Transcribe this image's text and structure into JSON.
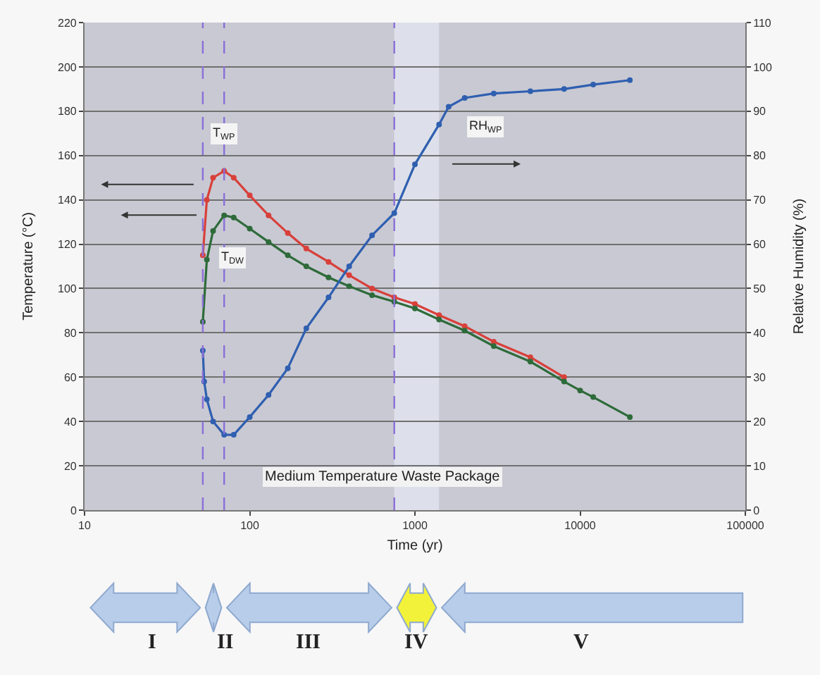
{
  "chart_data": {
    "type": "line",
    "xlabel": "Time (yr)",
    "ylabel": "Temperature (°C)",
    "y2label": "Relative Humidity (%)",
    "log": "x",
    "xlim": [
      10,
      100000
    ],
    "xticks": [
      10,
      100,
      1000,
      10000,
      100000
    ],
    "ylim": [
      0,
      220
    ],
    "yticks": [
      0,
      20,
      40,
      60,
      80,
      100,
      120,
      140,
      160,
      180,
      200,
      220
    ],
    "y2lim": [
      0,
      110
    ],
    "y2ticks": [
      0,
      10,
      20,
      30,
      40,
      50,
      60,
      70,
      80,
      90,
      100,
      110
    ],
    "grid": "y",
    "legend": false,
    "marker": "circle",
    "line_style": "solid",
    "series": [
      {
        "name": "T$_{WP}$",
        "color": "#d8403a",
        "x": [
          52,
          55,
          60,
          70,
          80,
          100,
          130,
          170,
          220,
          300,
          400,
          550,
          750,
          1000,
          1400,
          2000,
          3000,
          5000,
          8000
        ],
        "values": [
          115,
          140,
          150,
          153,
          150,
          142,
          133,
          125,
          118,
          112,
          106,
          100,
          96,
          93,
          88,
          83,
          76,
          69,
          60
        ]
      },
      {
        "name": "T$_{DW}$",
        "color": "#2e6b3a",
        "x": [
          52,
          55,
          60,
          70,
          80,
          100,
          130,
          170,
          220,
          300,
          400,
          550,
          750,
          1000,
          1400,
          2000,
          3000,
          5000,
          8000,
          10000,
          12000,
          20000
        ],
        "values": [
          85,
          113,
          126,
          133,
          132,
          127,
          121,
          115,
          110,
          105,
          101,
          97,
          94,
          91,
          86,
          81,
          74,
          67,
          58,
          54,
          51,
          42
        ]
      },
      {
        "name": "RH$_{WP}$",
        "color": "#2f5fb0",
        "axis": "y2",
        "x": [
          52,
          53,
          55,
          60,
          70,
          80,
          100,
          130,
          170,
          220,
          300,
          400,
          550,
          750,
          1000,
          1400,
          1600,
          2000,
          3000,
          5000,
          8000,
          12000,
          20000
        ],
        "values": [
          36,
          29,
          25,
          20,
          17,
          17,
          21,
          26,
          32,
          41,
          48,
          55,
          62,
          67,
          78,
          87,
          91,
          93,
          94,
          94.5,
          95,
          96,
          97
        ]
      }
    ],
    "ref_lines": [
      {
        "axis": "x",
        "value": 52,
        "color": "#8a6fd8",
        "line_style": "dashed"
      },
      {
        "axis": "x",
        "value": 70,
        "color": "#8a6fd8",
        "line_style": "dashed"
      },
      {
        "axis": "x",
        "value": 750,
        "color": "#8a6fd8",
        "line_style": "dashed"
      }
    ],
    "bands": [
      {
        "axis": "x",
        "from": 750,
        "to": 1400,
        "color": "#dde0ea"
      }
    ],
    "annotations": [
      "Medium Temperature Waste Package",
      "I",
      "II",
      "III",
      "IV",
      "V"
    ]
  }
}
